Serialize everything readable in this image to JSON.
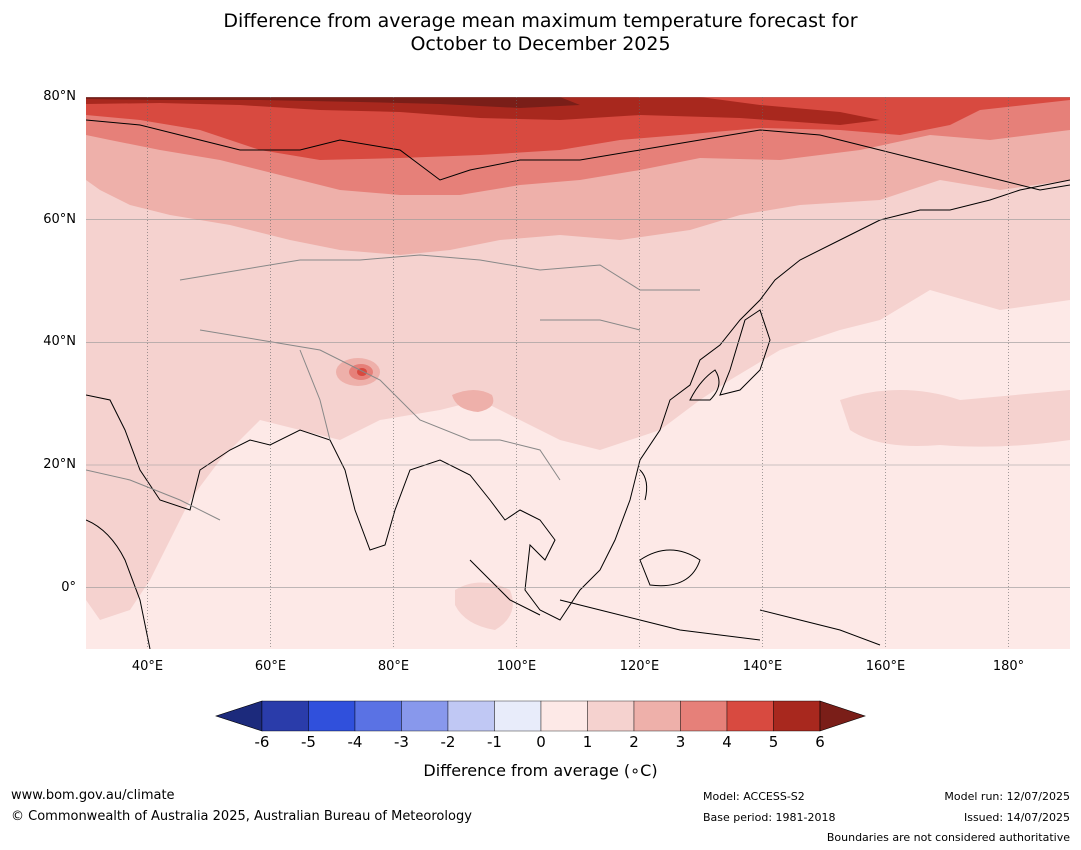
{
  "title": {
    "line1": "Difference from average mean maximum temperature forecast for",
    "line2": "October to December 2025"
  },
  "map": {
    "lat_labels": [
      {
        "label": "80°N",
        "lat": 80
      },
      {
        "label": "60°N",
        "lat": 60
      },
      {
        "label": "40°N",
        "lat": 40
      },
      {
        "label": "20°N",
        "lat": 20
      },
      {
        "label": "0°",
        "lat": 0
      }
    ],
    "lon_labels": [
      {
        "label": "40°E",
        "lon": 40
      },
      {
        "label": "60°E",
        "lon": 60
      },
      {
        "label": "80°E",
        "lon": 80
      },
      {
        "label": "100°E",
        "lon": 100
      },
      {
        "label": "120°E",
        "lon": 120
      },
      {
        "label": "140°E",
        "lon": 140
      },
      {
        "label": "160°E",
        "lon": 160
      },
      {
        "label": "180°",
        "lon": 180
      }
    ],
    "lon_range": [
      30,
      190
    ],
    "lat_range": [
      -10,
      80
    ]
  },
  "colorbar": {
    "ticks": [
      "-6",
      "-5",
      "-4",
      "-3",
      "-2",
      "-1",
      "0",
      "1",
      "2",
      "3",
      "4",
      "5",
      "6"
    ],
    "colors": [
      "#2a3caa",
      "#3050dc",
      "#5a72e4",
      "#8898ec",
      "#c0c8f4",
      "#e8ecfa",
      "#fde9e7",
      "#f5d2cf",
      "#eeb0aa",
      "#e68079",
      "#d84a40",
      "#a8281e"
    ],
    "under_color": "#1c2a7c",
    "over_color": "#7a1e18",
    "label": "Difference from average (∘C)"
  },
  "footer": {
    "website": "www.bom.gov.au/climate",
    "copyright": "© Commonwealth of Australia 2025, Australian Bureau of Meteorology",
    "model": "Model: ACCESS-S2",
    "base_period": "Base period: 1981-2018",
    "model_run": "Model run: 12/07/2025",
    "issued": "Issued: 14/07/2025",
    "disclaimer": "Boundaries are not considered authoritative"
  }
}
